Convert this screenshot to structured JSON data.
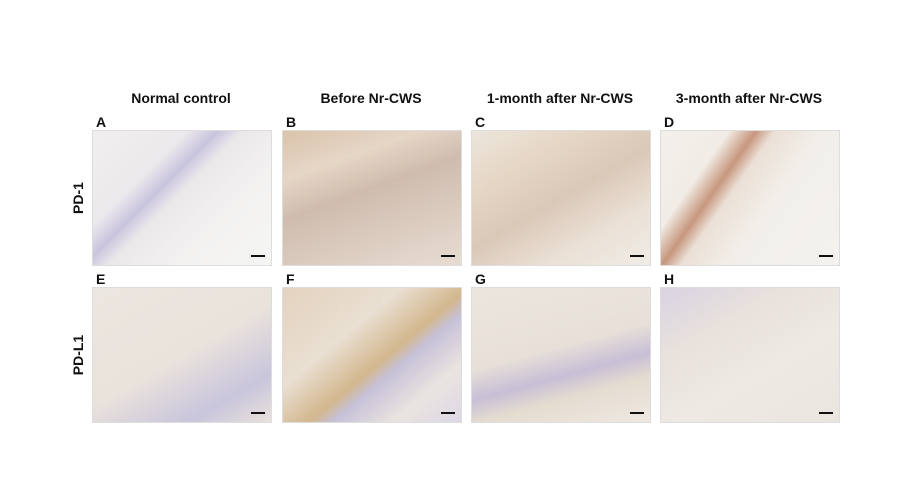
{
  "columns": [
    "Normal control",
    "Before Nr-CWS",
    "1-month after Nr-CWS",
    "3-month after Nr-CWS"
  ],
  "rows": [
    {
      "label": "PD-1",
      "panels": [
        "A",
        "B",
        "C",
        "D"
      ]
    },
    {
      "label": "PD-L1",
      "panels": [
        "E",
        "F",
        "G",
        "H"
      ]
    }
  ]
}
